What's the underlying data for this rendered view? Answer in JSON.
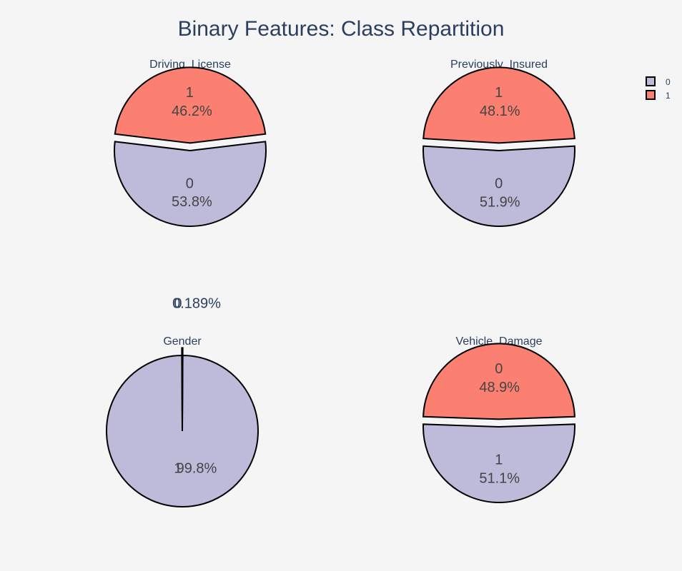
{
  "colors": {
    "background": "#f5f5f5",
    "class_a": "#bebada",
    "class_b": "#fb8072",
    "outline": "#000000",
    "text_dark": "#2a3f5f",
    "text_inside": "#444444"
  },
  "chart_data": {
    "title": "Binary Features: Class Repartition",
    "legend": {
      "placement": "top-right",
      "entries": [
        {
          "label": "0",
          "color": "#bebada"
        },
        {
          "label": "1",
          "color": "#fb8072"
        }
      ]
    },
    "charts": [
      {
        "type": "pie",
        "title": "Driving_License",
        "slices": [
          {
            "label": "0",
            "percent_text": "53.8%",
            "value": 53.8,
            "color": "#bebada"
          },
          {
            "label": "1",
            "percent_text": "46.2%",
            "value": 46.2,
            "color": "#fb8072"
          }
        ],
        "pull": [
          0,
          0.05
        ]
      },
      {
        "type": "pie",
        "title": "Previously_Insured",
        "slices": [
          {
            "label": "0",
            "percent_text": "51.9%",
            "value": 51.9,
            "color": "#bebada"
          },
          {
            "label": "1",
            "percent_text": "48.1%",
            "value": 48.1,
            "color": "#fb8072"
          }
        ],
        "pull": [
          0,
          0.05
        ]
      },
      {
        "type": "pie",
        "title": "Gender",
        "slices": [
          {
            "label": "1",
            "percent_text": "99.8%",
            "value": 99.811,
            "color": "#bebada"
          },
          {
            "label": "0",
            "percent_text": "0.189%",
            "value": 0.189,
            "color": "#fb8072"
          }
        ],
        "pull": [
          0,
          0.05
        ]
      },
      {
        "type": "pie",
        "title": "Vehicle_Damage",
        "slices": [
          {
            "label": "1",
            "percent_text": "51.1%",
            "value": 51.1,
            "color": "#bebada"
          },
          {
            "label": "0",
            "percent_text": "48.9%",
            "value": 48.9,
            "color": "#fb8072"
          }
        ],
        "pull": [
          0,
          0.05
        ]
      }
    ]
  }
}
